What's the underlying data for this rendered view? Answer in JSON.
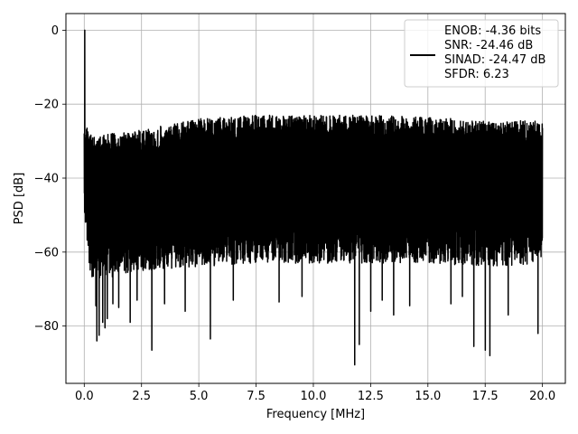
{
  "chart_data": {
    "type": "line",
    "title": "",
    "xlabel": "Frequency [MHz]",
    "ylabel": "PSD [dB]",
    "xlim": [
      -0.8,
      21.0
    ],
    "ylim": [
      -95.5,
      4.5
    ],
    "x_ticks": [
      0.0,
      2.5,
      5.0,
      7.5,
      10.0,
      12.5,
      15.0,
      17.5,
      20.0
    ],
    "x_tick_labels": [
      "0.0",
      "2.5",
      "5.0",
      "7.5",
      "10.0",
      "12.5",
      "15.0",
      "17.5",
      "20.0"
    ],
    "y_ticks": [
      0,
      -20,
      -40,
      -60,
      -80
    ],
    "y_tick_labels": [
      "0",
      "−20",
      "−40",
      "−60",
      "−80"
    ],
    "grid": true,
    "legend": {
      "placement": "top-right",
      "lines": [
        "ENOB: -4.36 bits",
        "SNR: -24.46 dB",
        "SINAD: -24.47 dB",
        "SFDR: 6.23"
      ]
    },
    "series": [
      {
        "color": "#000000",
        "x_range": [
          0.0,
          20.0
        ],
        "peak": {
          "x": 0.02,
          "y": 0.0
        },
        "upper_envelope": [
          {
            "x": 0.0,
            "y": -24
          },
          {
            "x": 0.3,
            "y": -28.5
          },
          {
            "x": 2.5,
            "y": -27
          },
          {
            "x": 5.0,
            "y": -24
          },
          {
            "x": 7.5,
            "y": -23
          },
          {
            "x": 10.0,
            "y": -23
          },
          {
            "x": 12.5,
            "y": -23
          },
          {
            "x": 15.0,
            "y": -23.5
          },
          {
            "x": 17.5,
            "y": -24.5
          },
          {
            "x": 20.0,
            "y": -24.5
          }
        ],
        "lower_envelope": [
          {
            "x": 0.0,
            "y": -50
          },
          {
            "x": 0.3,
            "y": -68
          },
          {
            "x": 2.5,
            "y": -65
          },
          {
            "x": 5.0,
            "y": -64
          },
          {
            "x": 7.5,
            "y": -63
          },
          {
            "x": 10.0,
            "y": -63
          },
          {
            "x": 12.5,
            "y": -63
          },
          {
            "x": 15.0,
            "y": -63
          },
          {
            "x": 17.5,
            "y": -64
          },
          {
            "x": 20.0,
            "y": -63
          }
        ],
        "deep_nulls": [
          {
            "x": 0.5,
            "y": -74.5
          },
          {
            "x": 0.55,
            "y": -84
          },
          {
            "x": 0.65,
            "y": -82.5
          },
          {
            "x": 0.8,
            "y": -79
          },
          {
            "x": 0.9,
            "y": -80.5
          },
          {
            "x": 1.0,
            "y": -78
          },
          {
            "x": 1.25,
            "y": -74
          },
          {
            "x": 1.5,
            "y": -75
          },
          {
            "x": 2.0,
            "y": -79
          },
          {
            "x": 2.3,
            "y": -73
          },
          {
            "x": 2.95,
            "y": -86.5
          },
          {
            "x": 3.5,
            "y": -74
          },
          {
            "x": 4.4,
            "y": -76
          },
          {
            "x": 5.5,
            "y": -83.5
          },
          {
            "x": 6.5,
            "y": -73
          },
          {
            "x": 8.5,
            "y": -73.5
          },
          {
            "x": 9.5,
            "y": -72
          },
          {
            "x": 11.8,
            "y": -90.5
          },
          {
            "x": 12.0,
            "y": -85
          },
          {
            "x": 12.5,
            "y": -76
          },
          {
            "x": 13.0,
            "y": -73
          },
          {
            "x": 13.5,
            "y": -77
          },
          {
            "x": 14.2,
            "y": -74.5
          },
          {
            "x": 16.0,
            "y": -74
          },
          {
            "x": 16.5,
            "y": -72
          },
          {
            "x": 17.0,
            "y": -85.5
          },
          {
            "x": 17.5,
            "y": -86.5
          },
          {
            "x": 17.7,
            "y": -88
          },
          {
            "x": 18.5,
            "y": -77
          },
          {
            "x": 19.8,
            "y": -82
          }
        ]
      }
    ]
  }
}
